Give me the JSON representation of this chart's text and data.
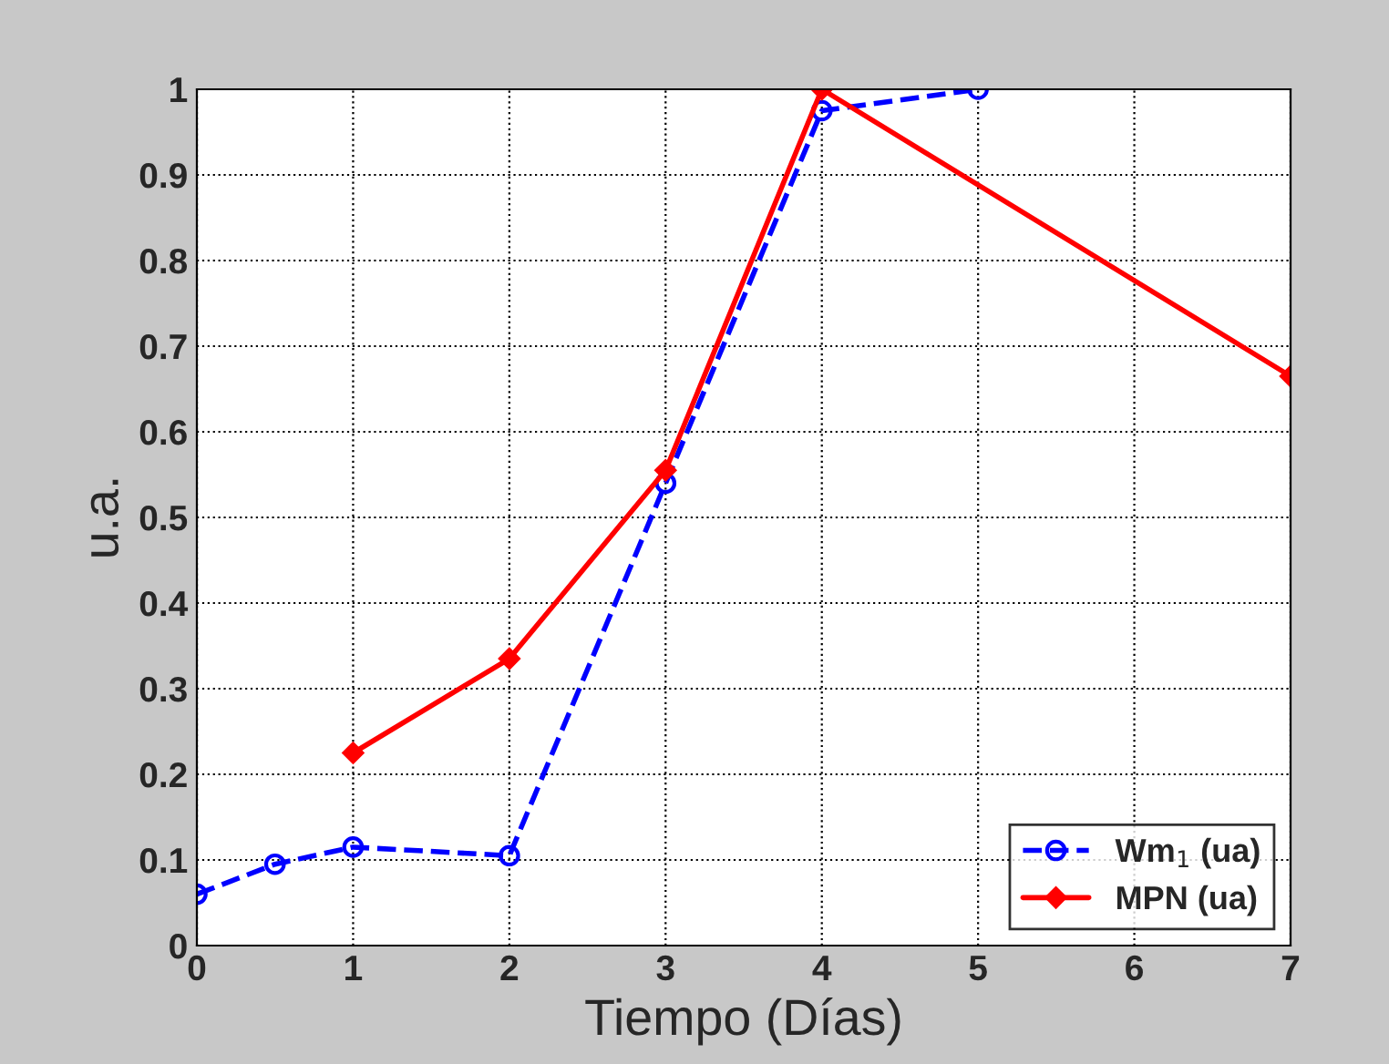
{
  "chart_data": {
    "type": "line",
    "xlabel": "Tiempo (Días)",
    "ylabel": "u.a.",
    "series": [
      {
        "name": "Wm$_{1}$ (ua)",
        "color": "#0000ff",
        "marker": "circle",
        "line_style": "dashed",
        "x": [
          0,
          0.5,
          1,
          2,
          3,
          4,
          5
        ],
        "values": [
          0.06,
          0.095,
          0.115,
          0.105,
          0.54,
          0.975,
          1.0
        ]
      },
      {
        "name": "MPN (ua)",
        "color": "#ff0000",
        "marker": "diamond",
        "line_style": "solid",
        "x": [
          1,
          2,
          3,
          4,
          7
        ],
        "values": [
          0.225,
          0.335,
          0.555,
          1.0,
          0.665
        ]
      }
    ],
    "xlim": [
      0,
      7
    ],
    "xticks": [
      0,
      1,
      2,
      3,
      4,
      5,
      6,
      7
    ],
    "ylim": [
      0,
      1
    ],
    "yticks": [
      0,
      0.1,
      0.2,
      0.3,
      0.4,
      0.5,
      0.6,
      0.7,
      0.8,
      0.9,
      1
    ],
    "grid": true,
    "legend": "bottom right"
  }
}
